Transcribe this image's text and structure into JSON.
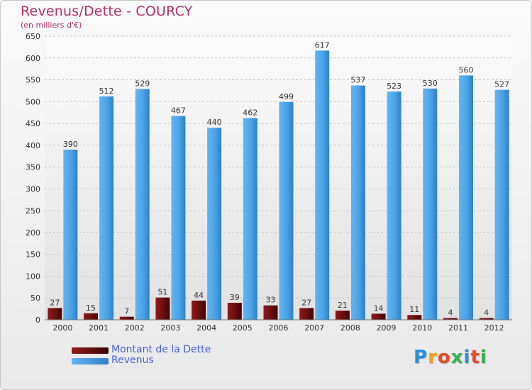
{
  "header": {
    "title": "Revenus/Dette - COURCY",
    "subtitle": "(en milliers d'€)"
  },
  "logo": {
    "letters": [
      "P",
      "r",
      "o",
      "x",
      "i",
      "t",
      "i"
    ],
    "colors": [
      "#2a8fd8",
      "#f0a020",
      "#e84a2a",
      "#3ab04a",
      "#2a8fd8",
      "#e84a2a",
      "#3ab04a"
    ]
  },
  "legend": {
    "items": [
      {
        "label": "Montant de la Dette",
        "color": "#6b0f0f"
      },
      {
        "label": "Revenus",
        "color": "#4aa3e8"
      }
    ]
  },
  "chart_data": {
    "type": "bar",
    "title": "Revenus/Dette - COURCY",
    "subtitle": "(en milliers d'€)",
    "categories": [
      "2000",
      "2001",
      "2002",
      "2003",
      "2004",
      "2005",
      "2006",
      "2007",
      "2008",
      "2009",
      "2010",
      "2011",
      "2012"
    ],
    "series": [
      {
        "name": "Montant de la Dette",
        "color": "#6b0f0f",
        "values": [
          27,
          15,
          7,
          51,
          44,
          39,
          33,
          27,
          21,
          14,
          11,
          4,
          4
        ]
      },
      {
        "name": "Revenus",
        "color": "#4aa3e8",
        "values": [
          390,
          512,
          529,
          467,
          440,
          462,
          499,
          617,
          537,
          523,
          530,
          560,
          527
        ]
      }
    ],
    "ylim": [
      0,
      650
    ],
    "yticks": [
      0,
      50,
      100,
      150,
      200,
      250,
      300,
      350,
      400,
      450,
      500,
      550,
      600,
      650
    ],
    "grid": true,
    "legend_position": "bottom-left"
  }
}
